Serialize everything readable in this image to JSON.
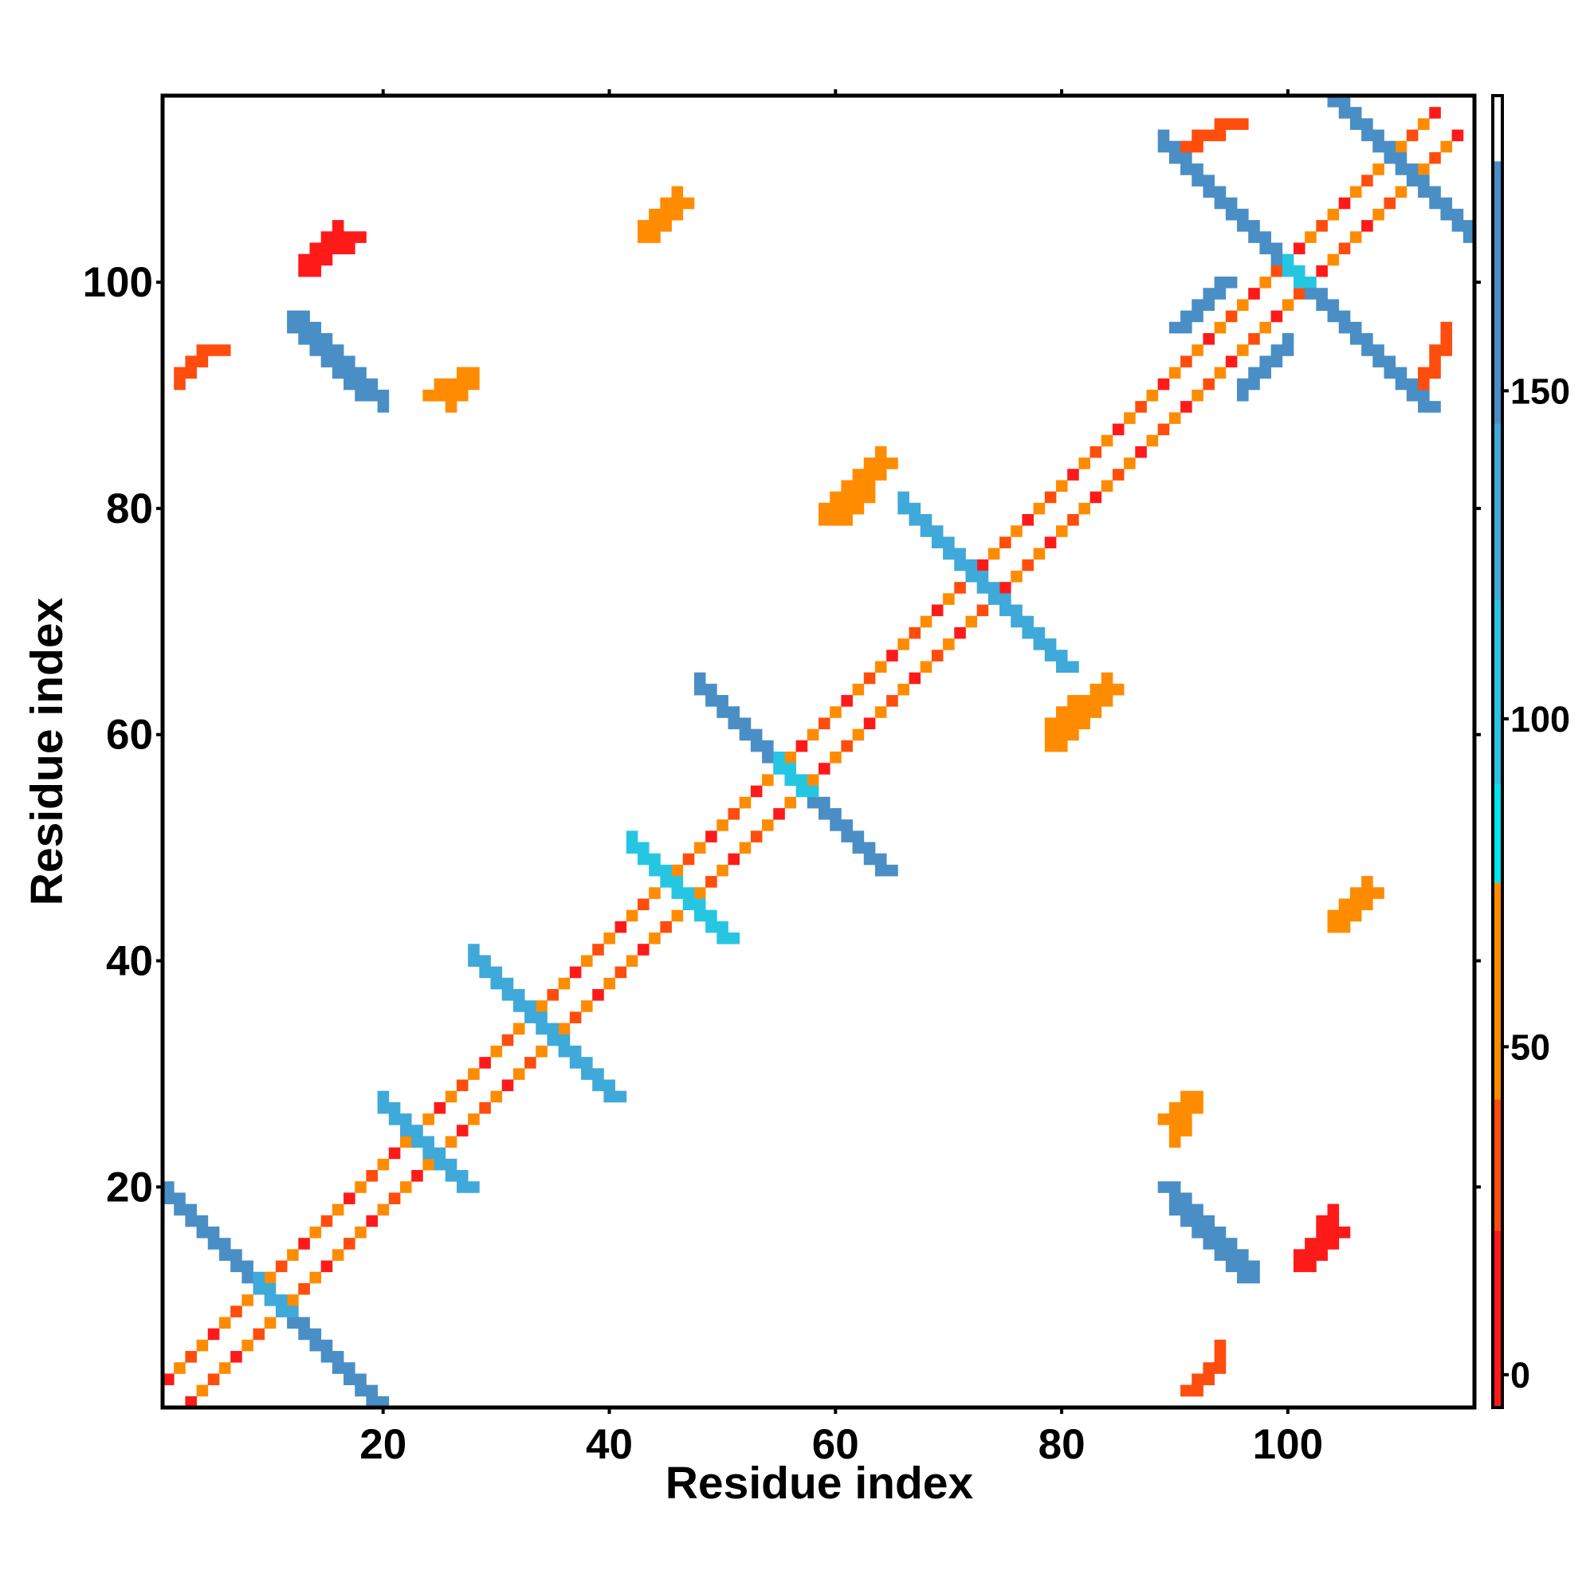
{
  "chart_data": {
    "type": "heatmap",
    "title": "",
    "xlabel": "Residue index",
    "ylabel": "Residue index",
    "xlim": [
      1,
      116
    ],
    "ylim": [
      1,
      116
    ],
    "x_ticks": [
      20,
      40,
      60,
      80,
      100
    ],
    "y_ticks": [
      20,
      40,
      60,
      80,
      100
    ],
    "grid": false,
    "colorbar": {
      "range": [
        -5,
        195
      ],
      "ticks": [
        0,
        50,
        100,
        150
      ],
      "color_bands": [
        {
          "from": -5,
          "to": 22,
          "color": "#ff1a1a"
        },
        {
          "from": 22,
          "to": 42,
          "color": "#ff4d0d"
        },
        {
          "from": 42,
          "to": 75,
          "color": "#ff8c00"
        },
        {
          "from": 75,
          "to": 90,
          "color": "#00e5ee"
        },
        {
          "from": 90,
          "to": 118,
          "color": "#26c6e2"
        },
        {
          "from": 118,
          "to": 145,
          "color": "#3fa9d9"
        },
        {
          "from": 145,
          "to": 185,
          "color": "#4a8ec6"
        },
        {
          "from": 185,
          "to": 195,
          "color": "#ffffff"
        }
      ]
    },
    "symmetric": true,
    "contact_segments": [
      {
        "type": "diagonal",
        "from": [
          1,
          3
        ],
        "to": [
          113,
          115
        ],
        "value_pattern": [
          12,
          45,
          30,
          60
        ]
      },
      {
        "type": "antidiagonal",
        "from": [
          1,
          19
        ],
        "to": [
          19,
          1
        ],
        "value": 155,
        "center_value": 120
      },
      {
        "type": "antidiagonal",
        "from": [
          20,
          27
        ],
        "to": [
          27,
          20
        ],
        "value": 120
      },
      {
        "type": "antidiagonal",
        "from": [
          28,
          40
        ],
        "to": [
          40,
          28
        ],
        "value": 135
      },
      {
        "type": "antidiagonal",
        "from": [
          42,
          50
        ],
        "to": [
          50,
          42
        ],
        "value": 110
      },
      {
        "type": "antidiagonal",
        "from": [
          48,
          64
        ],
        "to": [
          64,
          48
        ],
        "value": 155,
        "center_value": 110
      },
      {
        "type": "antidiagonal",
        "from": [
          66,
          80
        ],
        "to": [
          80,
          66
        ],
        "value": 125
      },
      {
        "type": "antidiagonal",
        "from": [
          89,
          112
        ],
        "to": [
          112,
          89
        ],
        "value": 155,
        "center_value": 110
      },
      {
        "type": "antidiagonal",
        "from": [
          104,
          116
        ],
        "to": [
          116,
          104
        ],
        "value": 155
      },
      {
        "type": "parallel",
        "from": [
          12,
          97
        ],
        "to": [
          18,
          90
        ],
        "value": 150
      },
      {
        "type": "parallel",
        "from": [
          3,
          93
        ],
        "to": [
          5,
          94
        ],
        "value": 35
      },
      {
        "type": "parallel",
        "from": [
          13,
          101
        ],
        "to": [
          17,
          104
        ],
        "value": 15
      },
      {
        "type": "parallel",
        "from": [
          24,
          90
        ],
        "to": [
          27,
          92
        ],
        "value": 55
      },
      {
        "type": "parallel",
        "from": [
          43,
          104
        ],
        "to": [
          46,
          107
        ],
        "value": 60
      },
      {
        "type": "parallel",
        "from": [
          60,
          79
        ],
        "to": [
          64,
          84
        ],
        "value": 55
      },
      {
        "type": "parallel",
        "from": [
          79,
          59
        ],
        "to": [
          84,
          64
        ],
        "value": 55
      },
      {
        "type": "parallel",
        "from": [
          89,
          20
        ],
        "to": [
          96,
          12
        ],
        "value": 150
      },
      {
        "type": "parallel",
        "from": [
          101,
          13
        ],
        "to": [
          104,
          16
        ],
        "value": 15
      },
      {
        "type": "parallel",
        "from": [
          104,
          43
        ],
        "to": [
          107,
          46
        ],
        "value": 60
      },
      {
        "type": "parallel",
        "from": [
          91,
          2
        ],
        "to": [
          93,
          4
        ],
        "value": 35
      },
      {
        "type": "parallel",
        "from": [
          89,
          26
        ],
        "to": [
          91,
          28
        ],
        "value": 55
      },
      {
        "type": "parallel",
        "from": [
          90,
          96
        ],
        "to": [
          94,
          100
        ],
        "value": 150
      },
      {
        "type": "parallel",
        "from": [
          91,
          112
        ],
        "to": [
          95,
          114
        ],
        "value": 30
      }
    ]
  }
}
